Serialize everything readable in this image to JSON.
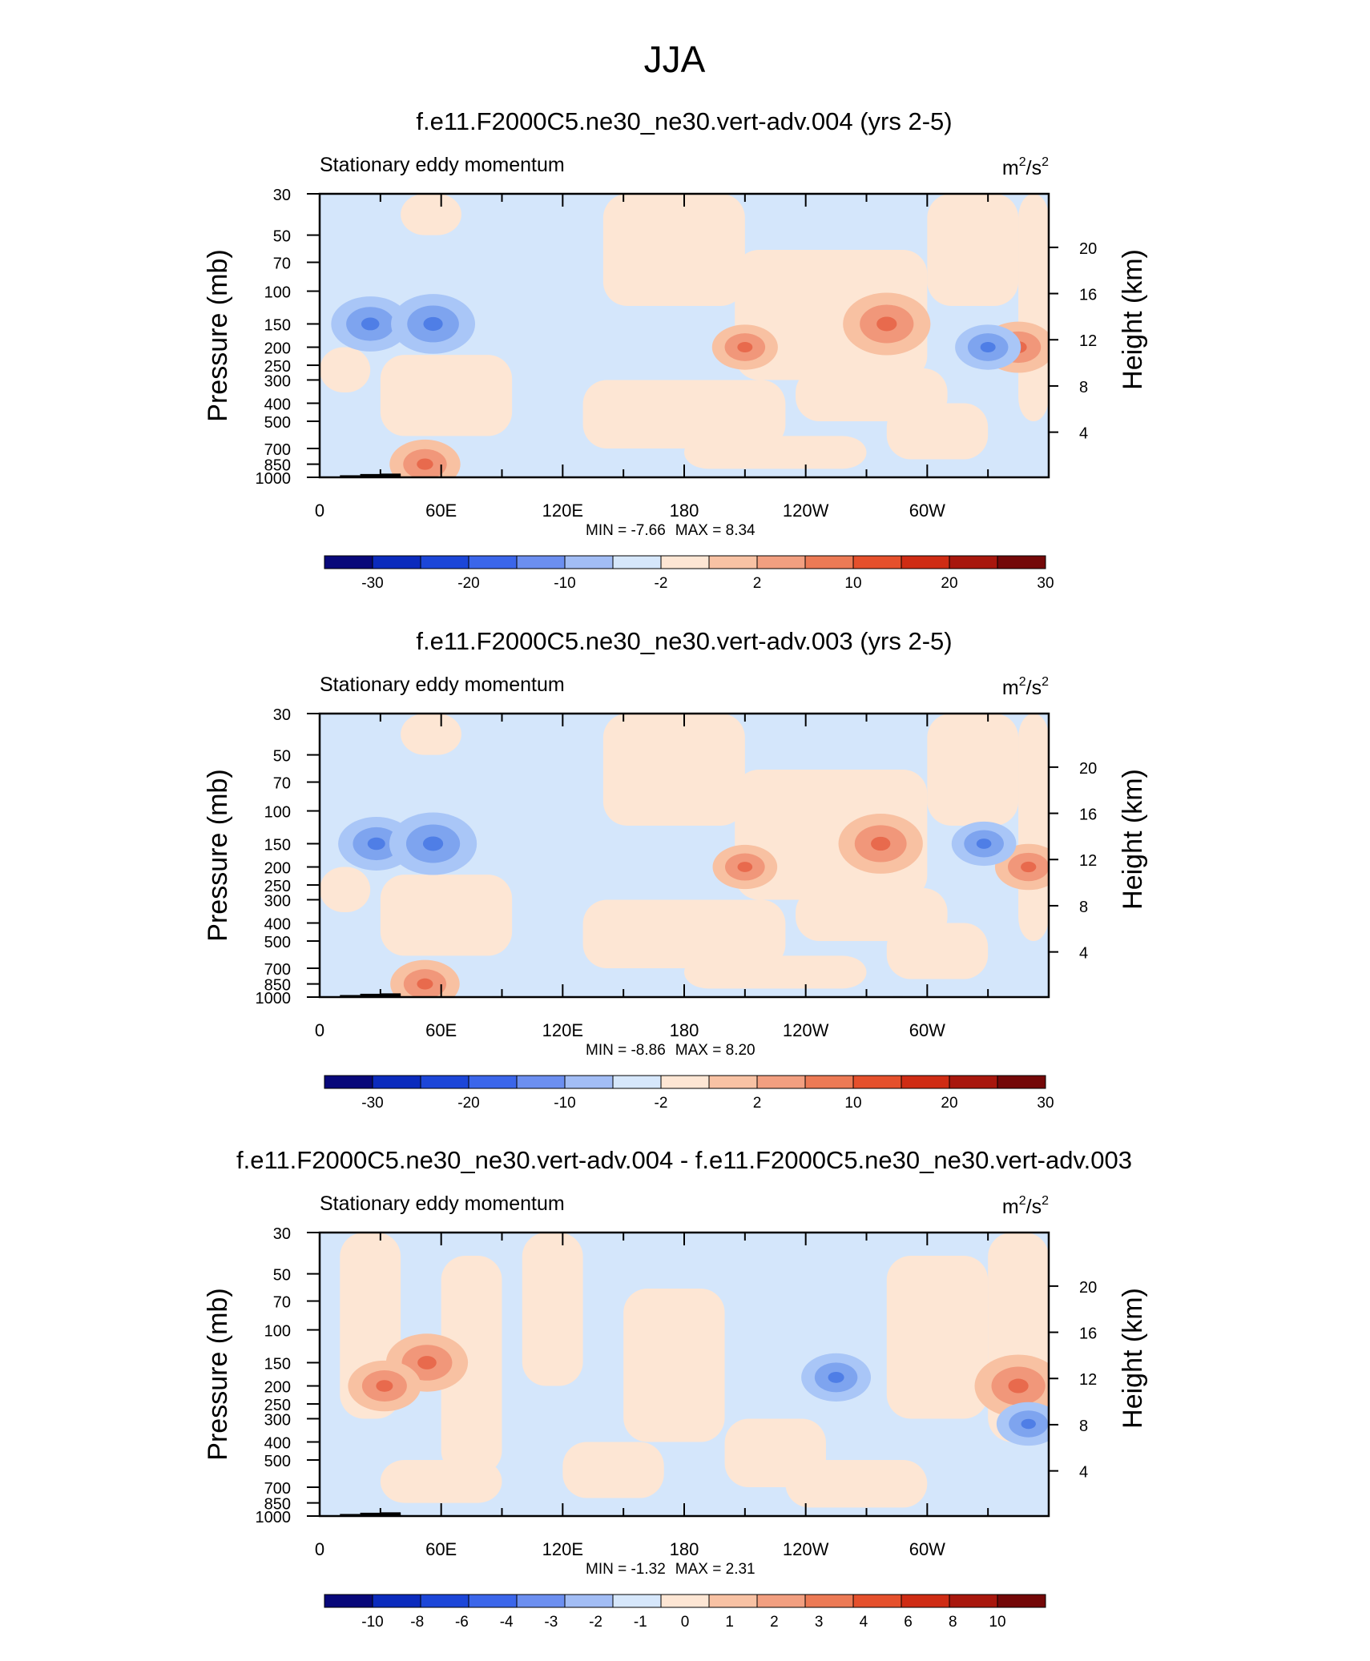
{
  "figure": {
    "title": "JJA"
  },
  "colors": {
    "outline": "#000000",
    "neg_light": "#d4e6fb",
    "neg_mid": "#a9c6f7",
    "neg_strong": "#7ea4ef",
    "neg_deep": "#4f7ee6",
    "pos_light": "#fde6d4",
    "pos_mid": "#f8c1a2",
    "pos_strong": "#f1977a",
    "pos_deep": "#e86a4d"
  },
  "chart_data": [
    {
      "type": "heatmap",
      "title": "f.e11.F2000C5.ne30_ne30.vert-adv.004 (yrs 2-5)",
      "subtitle_left": "Stationary eddy momentum",
      "units_base": "m",
      "units_exp1": "2",
      "units_sep": "/s",
      "units_exp2": "2",
      "ylabel": "Pressure (mb)",
      "ylabel_right": "Height (km)",
      "xlabel": "",
      "x_range": [
        0,
        360
      ],
      "x_ticks": [
        "0",
        "60E",
        "120E",
        "180",
        "120W",
        "60W"
      ],
      "y_ticks": [
        "30",
        "50",
        "70",
        "100",
        "150",
        "200",
        "250",
        "300",
        "400",
        "500",
        "700",
        "850",
        "1000"
      ],
      "height_ticks": [
        "20",
        "16",
        "12",
        "8",
        "4"
      ],
      "min_label": "MIN =",
      "min_value": "-7.66",
      "max_label": "MAX =",
      "max_value": "8.34",
      "colorbar_colors": [
        "#08087a",
        "#0b2bbd",
        "#1c46d8",
        "#3b66ea",
        "#6c8ff0",
        "#a2bdf5",
        "#d6e7fb",
        "#fde6d4",
        "#f8c2a4",
        "#f29f80",
        "#ec7a55",
        "#e5502c",
        "#cf2c14",
        "#a8170d",
        "#740808"
      ],
      "colorbar_labels": [
        "-30",
        "-20",
        "-10",
        "-2",
        "2",
        "10",
        "20",
        "30"
      ],
      "features": [
        {
          "name": "negative-core",
          "lon": 25,
          "p": 150,
          "value": -6.5
        },
        {
          "name": "negative-core",
          "lon": 56,
          "p": 150,
          "value": -7.66
        },
        {
          "name": "positive-core",
          "lon": 280,
          "p": 150,
          "value": 8.34
        },
        {
          "name": "positive-core",
          "lon": 210,
          "p": 200,
          "value": 4.0
        },
        {
          "name": "positive-core",
          "lon": 345,
          "p": 200,
          "value": 5.5
        },
        {
          "name": "negative-core",
          "lon": 330,
          "p": 200,
          "value": -4.0
        },
        {
          "name": "positive-core",
          "lon": 52,
          "p": 850,
          "value": 5.0
        }
      ]
    },
    {
      "type": "heatmap",
      "title": "f.e11.F2000C5.ne30_ne30.vert-adv.003 (yrs 2-5)",
      "subtitle_left": "Stationary eddy momentum",
      "units_base": "m",
      "units_exp1": "2",
      "units_sep": "/s",
      "units_exp2": "2",
      "ylabel": "Pressure (mb)",
      "ylabel_right": "Height (km)",
      "xlabel": "",
      "x_range": [
        0,
        360
      ],
      "x_ticks": [
        "0",
        "60E",
        "120E",
        "180",
        "120W",
        "60W"
      ],
      "y_ticks": [
        "30",
        "50",
        "70",
        "100",
        "150",
        "200",
        "250",
        "300",
        "400",
        "500",
        "700",
        "850",
        "1000"
      ],
      "height_ticks": [
        "20",
        "16",
        "12",
        "8",
        "4"
      ],
      "min_label": "MIN =",
      "min_value": "-8.86",
      "max_label": "MAX =",
      "max_value": "8.20",
      "colorbar_colors": [
        "#08087a",
        "#0b2bbd",
        "#1c46d8",
        "#3b66ea",
        "#6c8ff0",
        "#a2bdf5",
        "#d6e7fb",
        "#fde6d4",
        "#f8c2a4",
        "#f29f80",
        "#ec7a55",
        "#e5502c",
        "#cf2c14",
        "#a8170d",
        "#740808"
      ],
      "colorbar_labels": [
        "-30",
        "-20",
        "-10",
        "-2",
        "2",
        "10",
        "20",
        "30"
      ],
      "features": [
        {
          "name": "negative-core",
          "lon": 28,
          "p": 150,
          "value": -6.5
        },
        {
          "name": "negative-core",
          "lon": 56,
          "p": 150,
          "value": -8.86
        },
        {
          "name": "positive-core",
          "lon": 277,
          "p": 150,
          "value": 8.2
        },
        {
          "name": "positive-core",
          "lon": 210,
          "p": 200,
          "value": 4.0
        },
        {
          "name": "positive-core",
          "lon": 350,
          "p": 200,
          "value": 4.5
        },
        {
          "name": "negative-core",
          "lon": 328,
          "p": 150,
          "value": -4.0
        },
        {
          "name": "positive-core",
          "lon": 52,
          "p": 850,
          "value": 5.0
        }
      ]
    },
    {
      "type": "heatmap",
      "title": "f.e11.F2000C5.ne30_ne30.vert-adv.004 - f.e11.F2000C5.ne30_ne30.vert-adv.003",
      "subtitle_left": "Stationary eddy momentum",
      "units_base": "m",
      "units_exp1": "2",
      "units_sep": "/s",
      "units_exp2": "2",
      "ylabel": "Pressure (mb)",
      "ylabel_right": "Height (km)",
      "xlabel": "",
      "x_range": [
        0,
        360
      ],
      "x_ticks": [
        "0",
        "60E",
        "120E",
        "180",
        "120W",
        "60W"
      ],
      "y_ticks": [
        "30",
        "50",
        "70",
        "100",
        "150",
        "200",
        "250",
        "300",
        "400",
        "500",
        "700",
        "850",
        "1000"
      ],
      "height_ticks": [
        "20",
        "16",
        "12",
        "8",
        "4"
      ],
      "min_label": "MIN =",
      "min_value": "-1.32",
      "max_label": "MAX =",
      "max_value": "2.31",
      "colorbar_colors": [
        "#08087a",
        "#0b2bbd",
        "#1c46d8",
        "#3b66ea",
        "#6c8ff0",
        "#a2bdf5",
        "#d6e7fb",
        "#fde6d4",
        "#f8c2a4",
        "#f29f80",
        "#ec7a55",
        "#e5502c",
        "#cf2c14",
        "#a8170d",
        "#740808"
      ],
      "colorbar_labels": [
        "-10",
        "-8",
        "-6",
        "-4",
        "-3",
        "-2",
        "-1",
        "0",
        "1",
        "2",
        "3",
        "4",
        "6",
        "8",
        "10"
      ],
      "features": [
        {
          "name": "positive-core",
          "lon": 53,
          "p": 150,
          "value": 2.0
        },
        {
          "name": "positive-core",
          "lon": 32,
          "p": 200,
          "value": 1.5
        },
        {
          "name": "positive-core",
          "lon": 345,
          "p": 200,
          "value": 2.31
        },
        {
          "name": "negative-core",
          "lon": 255,
          "p": 180,
          "value": -1.32
        },
        {
          "name": "negative-core",
          "lon": 350,
          "p": 320,
          "value": -1.0
        }
      ]
    }
  ]
}
